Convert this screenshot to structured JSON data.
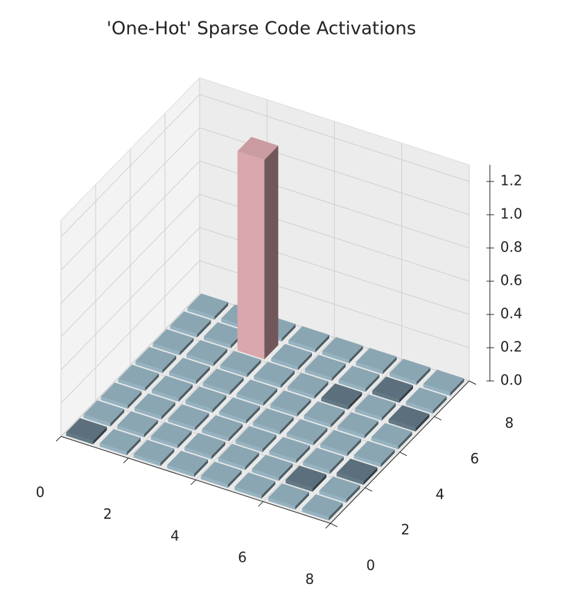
{
  "chart_data": {
    "type": "bar3d",
    "title": "'One-Hot' Sparse Code Activations",
    "x": [
      0,
      1,
      2,
      3,
      4,
      5,
      6,
      7
    ],
    "y": [
      0,
      1,
      2,
      3,
      4,
      5,
      6,
      7
    ],
    "values": [
      [
        0.02,
        0.02,
        0.02,
        0.02,
        0.02,
        0.02,
        0.02,
        0.02
      ],
      [
        0.02,
        0.02,
        0.02,
        0.02,
        0.02,
        0.02,
        0.02,
        0.02
      ],
      [
        0.02,
        0.02,
        0.02,
        0.02,
        0.02,
        0.02,
        1.2,
        0.02
      ],
      [
        0.02,
        0.02,
        0.02,
        0.02,
        0.02,
        0.02,
        0.02,
        0.02
      ],
      [
        0.02,
        0.02,
        0.02,
        0.02,
        0.02,
        0.02,
        0.02,
        0.02
      ],
      [
        0.02,
        0.02,
        0.02,
        0.02,
        0.02,
        0.02,
        0.02,
        0.02
      ],
      [
        0.02,
        0.02,
        0.02,
        0.02,
        0.02,
        0.02,
        0.02,
        0.02
      ],
      [
        0.02,
        0.02,
        0.02,
        0.02,
        0.02,
        0.02,
        0.02,
        0.02
      ]
    ],
    "colors": [
      [
        "#627885",
        "#95b2c0",
        "#95b2c0",
        "#95b2c0",
        "#95b2c0",
        "#95b2c0",
        "#95b2c0",
        "#95b2c0"
      ],
      [
        "#95b2c0",
        "#95b2c0",
        "#95b2c0",
        "#95b2c0",
        "#95b2c0",
        "#95b2c0",
        "#95b2c0",
        "#95b2c0"
      ],
      [
        "#95b2c0",
        "#95b2c0",
        "#95b2c0",
        "#95b2c0",
        "#95b2c0",
        "#95b2c0",
        "#d9a7ad",
        "#95b2c0"
      ],
      [
        "#95b2c0",
        "#95b2c0",
        "#95b2c0",
        "#95b2c0",
        "#95b2c0",
        "#95b2c0",
        "#95b2c0",
        "#95b2c0"
      ],
      [
        "#95b2c0",
        "#95b2c0",
        "#95b2c0",
        "#95b2c0",
        "#95b2c0",
        "#95b2c0",
        "#95b2c0",
        "#95b2c0"
      ],
      [
        "#95b2c0",
        "#95b2c0",
        "#95b2c0",
        "#95b2c0",
        "#95b2c0",
        "#627885",
        "#95b2c0",
        "#95b2c0"
      ],
      [
        "#95b2c0",
        "#627885",
        "#95b2c0",
        "#95b2c0",
        "#95b2c0",
        "#95b2c0",
        "#627885",
        "#95b2c0"
      ],
      [
        "#95b2c0",
        "#95b2c0",
        "#627885",
        "#95b2c0",
        "#95b2c0",
        "#627885",
        "#95b2c0",
        "#95b2c0"
      ]
    ],
    "xlim": [
      0,
      8
    ],
    "ylim": [
      0,
      8
    ],
    "zlim": [
      0,
      1.3
    ],
    "xticks": [
      0,
      2,
      4,
      6,
      8
    ],
    "yticks": [
      0,
      2,
      4,
      6,
      8
    ],
    "zticks": [
      {
        "value": 0,
        "label": "0.0"
      },
      0.2,
      0.4,
      0.6,
      0.8,
      {
        "value": 1,
        "label": "1.0"
      },
      1.2
    ],
    "grid": true
  }
}
